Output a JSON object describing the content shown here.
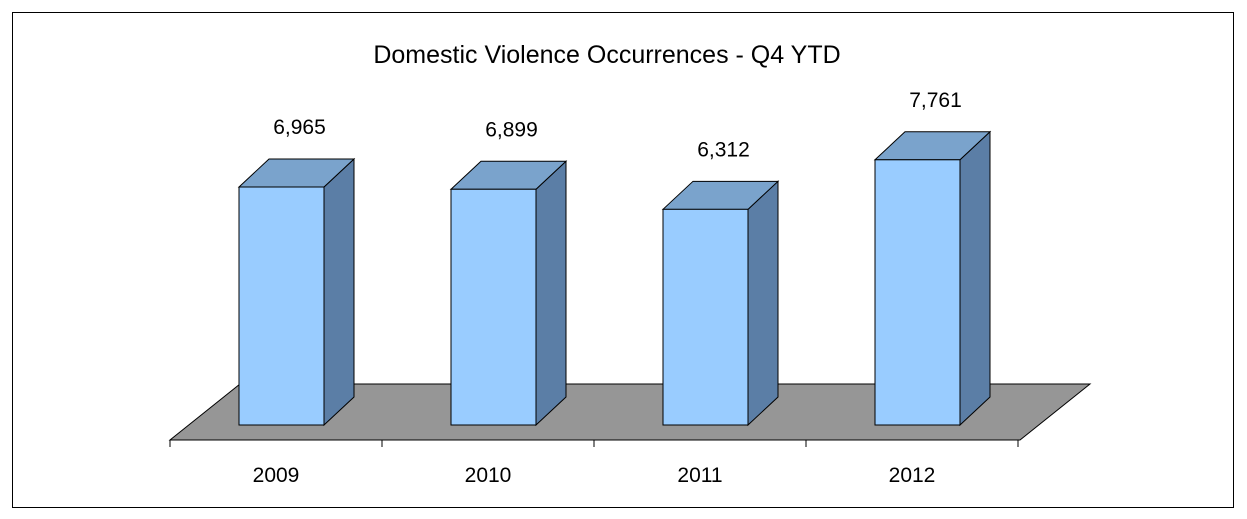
{
  "chart_data": {
    "type": "bar",
    "title": "Domestic Violence Occurrences - Q4 YTD",
    "categories": [
      "2009",
      "2010",
      "2011",
      "2012"
    ],
    "values": [
      6965,
      6899,
      6312,
      7761
    ],
    "data_labels": [
      "6,965",
      "6,899",
      "6,312",
      "7,761"
    ],
    "xlabel": "",
    "ylabel": "",
    "grid": false,
    "legend": "none",
    "style": "3d-column"
  },
  "colors": {
    "bar_front": "#99ccff",
    "bar_top": "#7aa3cc",
    "bar_side": "#5b7ea6",
    "floor": "#969696",
    "outline": "#000000"
  }
}
